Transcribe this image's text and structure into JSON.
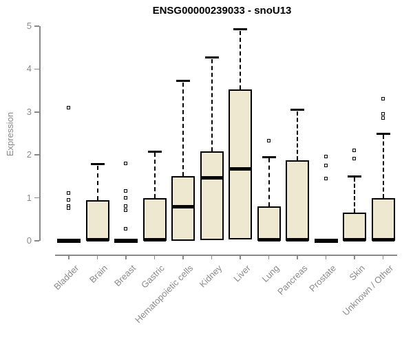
{
  "header": {
    "title": "ENSG00000239033 - snoU13"
  },
  "chart_data": {
    "type": "boxplot",
    "title": "ENSG00000239033 - snoU13",
    "xlabel": "",
    "ylabel": "Expression",
    "ylim": [
      0,
      5
    ],
    "yticks": [
      0,
      1,
      2,
      3,
      4,
      5
    ],
    "grid": false,
    "legend": false,
    "categories": [
      "Bladder",
      "Brain",
      "Breast",
      "Gastric",
      "Hematopoietic cells",
      "Kidney",
      "Liver",
      "Lung",
      "Pancreas",
      "Prostate",
      "Skin",
      "Unknown / Other"
    ],
    "series": [
      {
        "name": "Bladder",
        "q1": 0,
        "median": 0,
        "q3": 0,
        "whisker_low": 0,
        "whisker_high": 0,
        "outliers": [
          3.1,
          1.1,
          0.95,
          0.8,
          0.75
        ]
      },
      {
        "name": "Brain",
        "q1": 0,
        "median": 0.02,
        "q3": 0.95,
        "whisker_low": 0,
        "whisker_high": 1.78,
        "outliers": []
      },
      {
        "name": "Breast",
        "q1": 0,
        "median": 0,
        "q3": 0,
        "whisker_low": 0,
        "whisker_high": 0,
        "outliers": [
          1.8,
          1.15,
          1.0,
          0.8,
          0.7,
          0.27
        ]
      },
      {
        "name": "Gastric",
        "q1": 0,
        "median": 0.02,
        "q3": 1.0,
        "whisker_low": 0,
        "whisker_high": 2.08,
        "outliers": []
      },
      {
        "name": "Hematopoietic cells",
        "q1": 0,
        "median": 0.8,
        "q3": 1.5,
        "whisker_low": 0,
        "whisker_high": 3.72,
        "outliers": []
      },
      {
        "name": "Kidney",
        "q1": 0.02,
        "median": 1.47,
        "q3": 2.08,
        "whisker_low": 0.02,
        "whisker_high": 4.27,
        "outliers": []
      },
      {
        "name": "Liver",
        "q1": 0.03,
        "median": 1.68,
        "q3": 3.53,
        "whisker_low": 0.03,
        "whisker_high": 4.92,
        "outliers": []
      },
      {
        "name": "Lung",
        "q1": 0,
        "median": 0.02,
        "q3": 0.8,
        "whisker_low": 0,
        "whisker_high": 1.95,
        "outliers": [
          2.33
        ]
      },
      {
        "name": "Pancreas",
        "q1": 0,
        "median": 0.02,
        "q3": 1.88,
        "whisker_low": 0,
        "whisker_high": 3.05,
        "outliers": []
      },
      {
        "name": "Prostate",
        "q1": 0,
        "median": 0,
        "q3": 0,
        "whisker_low": 0,
        "whisker_high": 0,
        "outliers": [
          1.95,
          1.75,
          1.45
        ]
      },
      {
        "name": "Skin",
        "q1": 0,
        "median": 0.02,
        "q3": 0.65,
        "whisker_low": 0,
        "whisker_high": 1.5,
        "outliers": [
          2.1,
          1.9
        ]
      },
      {
        "name": "Unknown / Other",
        "q1": 0,
        "median": 0.02,
        "q3": 1.0,
        "whisker_low": 0,
        "whisker_high": 2.5,
        "outliers": [
          3.3,
          2.95,
          2.85
        ]
      }
    ],
    "colors": {
      "box_fill": "#ede8cf",
      "box_border": "#000000",
      "median": "#000000",
      "axis": "#888888",
      "tick_label": "#8a8a8a",
      "title": "#000000",
      "background": "#ffffff"
    }
  }
}
